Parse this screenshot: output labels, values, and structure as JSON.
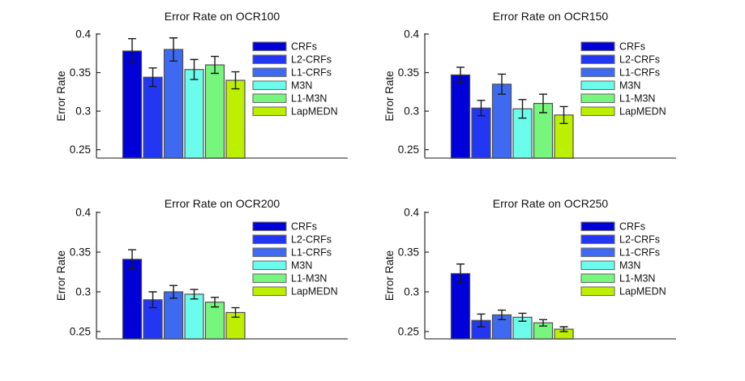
{
  "figure": {
    "ylabel": "Error Rate",
    "legend": [
      "CRFs",
      "L2-CRFs",
      "L1-CRFs",
      "M3N",
      "L1-M3N",
      "LapMEDN"
    ],
    "colors": [
      "#0000D8",
      "#2337F2",
      "#3E6AF2",
      "#6BFCEC",
      "#77F67E",
      "#BCEF00"
    ]
  },
  "chart_data": [
    {
      "type": "bar",
      "title": "Error Rate on OCR100",
      "categories": [
        "CRFs",
        "L2-CRFs",
        "L1-CRFs",
        "M3N",
        "L1-M3N",
        "LapMEDN"
      ],
      "values": [
        0.378,
        0.344,
        0.38,
        0.354,
        0.36,
        0.34
      ],
      "errors": [
        0.016,
        0.012,
        0.015,
        0.013,
        0.011,
        0.011
      ],
      "xlabel": "",
      "ylabel": "Error Rate",
      "yticks": [
        0.25,
        0.3,
        0.35,
        0.4
      ],
      "ylim": [
        0.24,
        0.4
      ],
      "grid": false,
      "legend_position": "upper-right"
    },
    {
      "type": "bar",
      "title": "Error Rate on OCR150",
      "categories": [
        "CRFs",
        "L2-CRFs",
        "L1-CRFs",
        "M3N",
        "L1-M3N",
        "LapMEDN"
      ],
      "values": [
        0.347,
        0.304,
        0.335,
        0.303,
        0.31,
        0.295
      ],
      "errors": [
        0.01,
        0.01,
        0.013,
        0.012,
        0.012,
        0.011
      ],
      "xlabel": "",
      "ylabel": "Error Rate",
      "yticks": [
        0.25,
        0.3,
        0.35,
        0.4
      ],
      "ylim": [
        0.24,
        0.4
      ],
      "grid": false,
      "legend_position": "upper-right"
    },
    {
      "type": "bar",
      "title": "Error Rate on OCR200",
      "categories": [
        "CRFs",
        "L2-CRFs",
        "L1-CRFs",
        "M3N",
        "L1-M3N",
        "LapMEDN"
      ],
      "values": [
        0.341,
        0.29,
        0.3,
        0.297,
        0.287,
        0.274
      ],
      "errors": [
        0.012,
        0.01,
        0.008,
        0.006,
        0.006,
        0.006
      ],
      "xlabel": "",
      "ylabel": "Error Rate",
      "yticks": [
        0.25,
        0.3,
        0.35,
        0.4
      ],
      "ylim": [
        0.24,
        0.4
      ],
      "grid": false,
      "legend_position": "upper-right"
    },
    {
      "type": "bar",
      "title": "Error Rate on OCR250",
      "categories": [
        "CRFs",
        "L2-CRFs",
        "L1-CRFs",
        "M3N",
        "L1-M3N",
        "LapMEDN"
      ],
      "values": [
        0.323,
        0.264,
        0.271,
        0.268,
        0.261,
        0.253
      ],
      "errors": [
        0.012,
        0.008,
        0.006,
        0.005,
        0.004,
        0.003
      ],
      "xlabel": "",
      "ylabel": "Error Rate",
      "yticks": [
        0.25,
        0.3,
        0.35,
        0.4
      ],
      "ylim": [
        0.24,
        0.4
      ],
      "grid": false,
      "legend_position": "upper-right"
    }
  ]
}
